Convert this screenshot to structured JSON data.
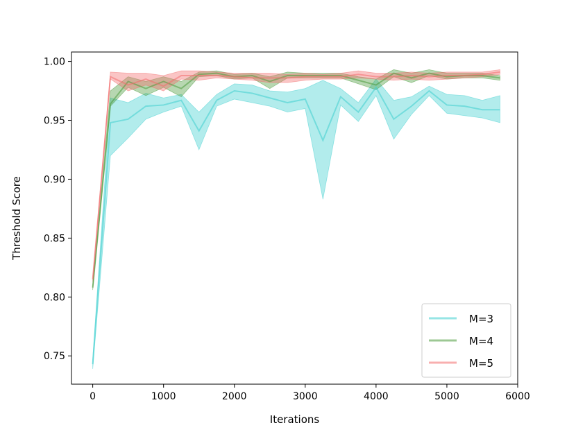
{
  "chart_data": {
    "type": "line",
    "title": "",
    "xlabel": "Iterations",
    "ylabel": "Threshold Score",
    "xlim": [
      -300,
      6000
    ],
    "ylim": [
      0.726,
      1.008
    ],
    "x_ticks": [
      0,
      1000,
      2000,
      3000,
      4000,
      5000,
      6000
    ],
    "y_ticks": [
      0.75,
      0.8,
      0.85,
      0.9,
      0.95,
      1.0
    ],
    "x_tick_labels": [
      "0",
      "1000",
      "2000",
      "3000",
      "4000",
      "5000",
      "6000"
    ],
    "y_tick_labels": [
      "0.75",
      "0.80",
      "0.85",
      "0.90",
      "0.95",
      "1.00"
    ],
    "grid": false,
    "legend_position": "bottom-right",
    "x": [
      0,
      250,
      500,
      750,
      1000,
      1250,
      1500,
      1750,
      2000,
      2250,
      2500,
      2750,
      3000,
      3250,
      3500,
      3750,
      4000,
      4250,
      4500,
      4750,
      5000,
      5250,
      5500,
      5750
    ],
    "series": [
      {
        "name": "M=3",
        "color": "#3fd0d0",
        "values": [
          0.743,
          0.948,
          0.951,
          0.962,
          0.963,
          0.967,
          0.941,
          0.967,
          0.975,
          0.973,
          0.969,
          0.965,
          0.968,
          0.933,
          0.97,
          0.957,
          0.978,
          0.951,
          0.962,
          0.975,
          0.963,
          0.962,
          0.959,
          0.959
        ],
        "lower": [
          0.739,
          0.92,
          0.935,
          0.951,
          0.957,
          0.962,
          0.925,
          0.962,
          0.968,
          0.965,
          0.962,
          0.957,
          0.96,
          0.883,
          0.963,
          0.949,
          0.971,
          0.934,
          0.955,
          0.971,
          0.956,
          0.954,
          0.952,
          0.948
        ],
        "upper": [
          0.747,
          0.969,
          0.965,
          0.973,
          0.969,
          0.972,
          0.957,
          0.972,
          0.981,
          0.98,
          0.975,
          0.974,
          0.977,
          0.984,
          0.977,
          0.965,
          0.985,
          0.967,
          0.97,
          0.979,
          0.972,
          0.971,
          0.967,
          0.971
        ]
      },
      {
        "name": "M=4",
        "color": "#4c9a3c",
        "values": [
          0.808,
          0.964,
          0.983,
          0.977,
          0.983,
          0.977,
          0.989,
          0.99,
          0.987,
          0.988,
          0.983,
          0.988,
          0.988,
          0.988,
          0.988,
          0.984,
          0.98,
          0.99,
          0.986,
          0.99,
          0.987,
          0.988,
          0.988,
          0.986
        ],
        "lower": [
          0.806,
          0.962,
          0.978,
          0.971,
          0.978,
          0.97,
          0.987,
          0.988,
          0.985,
          0.986,
          0.977,
          0.986,
          0.986,
          0.986,
          0.986,
          0.981,
          0.976,
          0.987,
          0.982,
          0.988,
          0.985,
          0.986,
          0.986,
          0.984
        ],
        "upper": [
          0.81,
          0.975,
          0.987,
          0.983,
          0.987,
          0.983,
          0.991,
          0.992,
          0.989,
          0.99,
          0.987,
          0.991,
          0.99,
          0.99,
          0.99,
          0.987,
          0.985,
          0.993,
          0.99,
          0.993,
          0.99,
          0.99,
          0.99,
          0.988
        ]
      },
      {
        "name": "M=5",
        "color": "#f26d6d",
        "values": [
          0.815,
          0.987,
          0.98,
          0.985,
          0.979,
          0.988,
          0.988,
          0.988,
          0.987,
          0.986,
          0.986,
          0.986,
          0.987,
          0.987,
          0.987,
          0.989,
          0.987,
          0.987,
          0.988,
          0.987,
          0.988,
          0.988,
          0.989,
          0.991
        ],
        "lower": [
          0.813,
          0.985,
          0.975,
          0.98,
          0.975,
          0.985,
          0.984,
          0.986,
          0.985,
          0.984,
          0.982,
          0.982,
          0.984,
          0.985,
          0.985,
          0.986,
          0.985,
          0.984,
          0.985,
          0.984,
          0.985,
          0.986,
          0.987,
          0.989
        ],
        "upper": [
          0.817,
          0.991,
          0.99,
          0.99,
          0.988,
          0.992,
          0.992,
          0.991,
          0.99,
          0.99,
          0.99,
          0.989,
          0.99,
          0.989,
          0.99,
          0.992,
          0.99,
          0.99,
          0.991,
          0.99,
          0.991,
          0.991,
          0.991,
          0.993
        ]
      }
    ]
  }
}
